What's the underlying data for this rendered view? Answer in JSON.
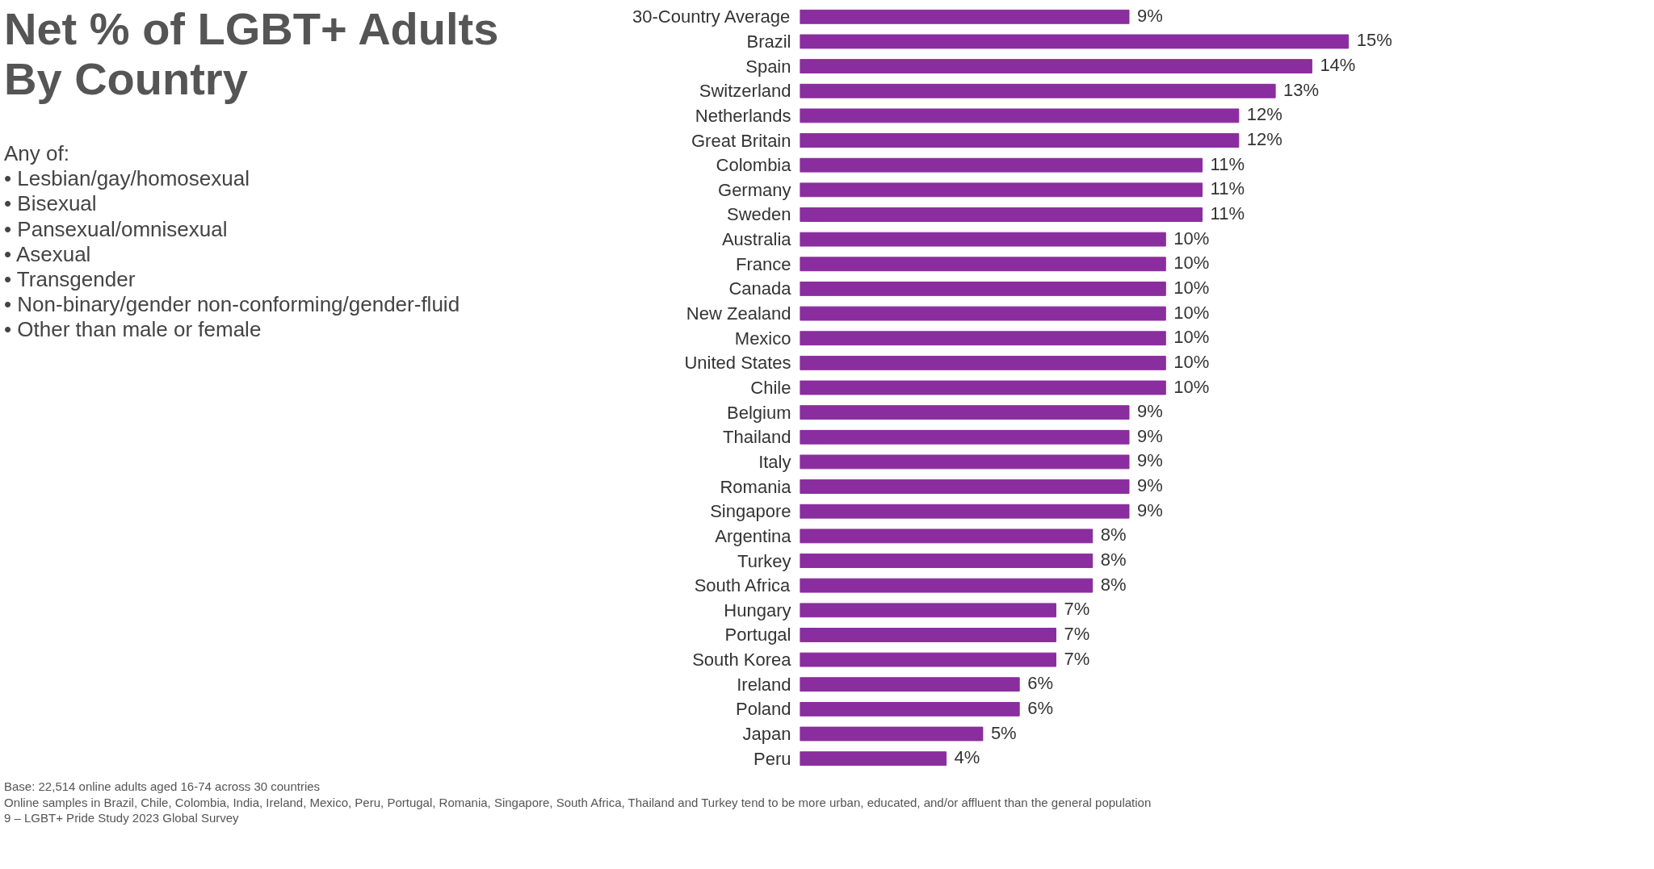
{
  "chart_data": {
    "type": "bar",
    "orientation": "horizontal",
    "title": "Net % of LGBT+ Adults By Country",
    "categories": [
      "30-Country Average",
      "Brazil",
      "Spain",
      "Switzerland",
      "Netherlands",
      "Great Britain",
      "Colombia",
      "Germany",
      "Sweden",
      "Australia",
      "France",
      "Canada",
      "New Zealand",
      "Mexico",
      "United States",
      "Chile",
      "Belgium",
      "Thailand",
      "Italy",
      "Romania",
      "Singapore",
      "Argentina",
      "Turkey",
      "South Africa",
      "Hungary",
      "Portugal",
      "South Korea",
      "Ireland",
      "Poland",
      "Japan",
      "Peru"
    ],
    "values": [
      9,
      15,
      14,
      13,
      12,
      12,
      11,
      11,
      11,
      10,
      10,
      10,
      10,
      10,
      10,
      10,
      9,
      9,
      9,
      9,
      9,
      8,
      8,
      8,
      7,
      7,
      7,
      6,
      6,
      5,
      4
    ],
    "value_labels": [
      "9%",
      "15%",
      "14%",
      "13%",
      "12%",
      "12%",
      "11%",
      "11%",
      "11%",
      "10%",
      "10%",
      "10%",
      "10%",
      "10%",
      "10%",
      "10%",
      "9%",
      "9%",
      "9%",
      "9%",
      "9%",
      "8%",
      "8%",
      "8%",
      "7%",
      "7%",
      "7%",
      "6%",
      "6%",
      "5%",
      "4%"
    ],
    "color": "#8a2d9e",
    "grid": false,
    "tick_labels": "y",
    "annotations": [
      "Any of:",
      "•  Lesbian/gay/homosexual",
      "•  Bisexual",
      "•  Pansexual/omnisexual",
      "•  Asexual",
      "•  Transgender",
      "•  Non-binary/gender non-conforming/gender-fluid",
      "•  Other than male or female",
      "Base: 22,514 online adults aged 16-74 across 30 countries",
      "Online samples in Brazil, Chile, Colombia, India, Ireland, Mexico, Peru, Portugal, Romania, Singapore, South Africa, Thailand and Turkey tend to be more urban, educated, and/or affluent than the general population",
      "9 –  LGBT+ Pride Study 2023 Global Survey"
    ]
  }
}
